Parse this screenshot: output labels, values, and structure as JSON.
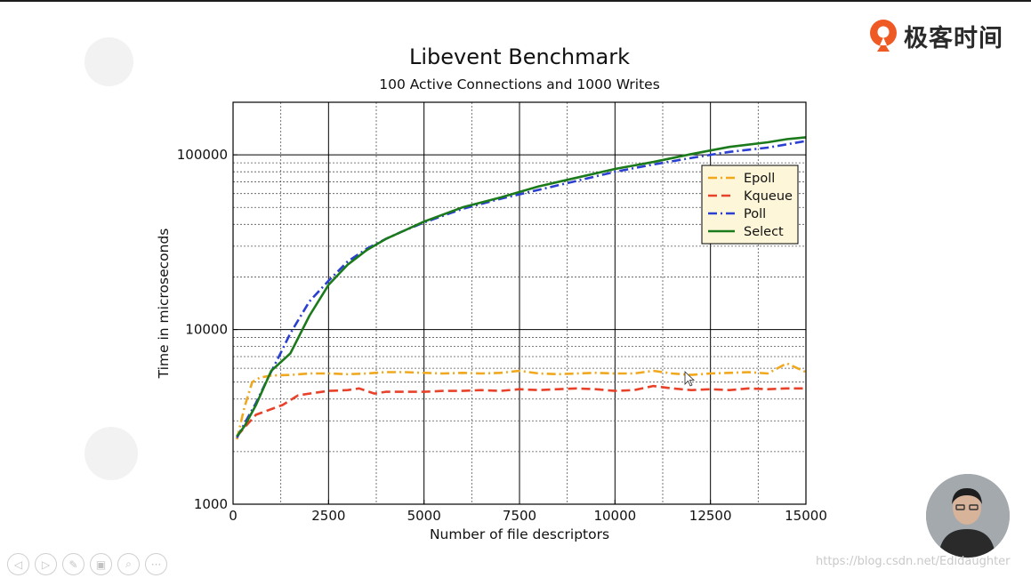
{
  "brand": {
    "name": "极客时间",
    "accent": "#ef5a24"
  },
  "watermark": "https://blog.csdn.net/Edidaughter",
  "controls": [
    {
      "name": "prev-icon",
      "glyph": "◁"
    },
    {
      "name": "next-icon",
      "glyph": "▷"
    },
    {
      "name": "pen-icon",
      "glyph": "✎"
    },
    {
      "name": "slides-icon",
      "glyph": "▣"
    },
    {
      "name": "zoom-icon",
      "glyph": "⌕"
    },
    {
      "name": "more-icon",
      "glyph": "···"
    }
  ],
  "chart_data": {
    "type": "line",
    "title": "Libevent Benchmark",
    "subtitle": "100 Active Connections and 1000 Writes",
    "xlabel": "Number of file descriptors",
    "ylabel": "Time in microseconds",
    "xlim": [
      0,
      15000
    ],
    "ylim": [
      1000,
      200000
    ],
    "yscale": "log",
    "grid": true,
    "legend_position": "upper-right",
    "x_ticks": [
      0,
      2500,
      5000,
      7500,
      10000,
      12500,
      15000
    ],
    "x_tick_labels": [
      "0",
      "2500",
      "5000",
      "7500",
      "10000",
      "12500",
      "15000"
    ],
    "y_ticks": [
      1000,
      10000,
      100000
    ],
    "y_tick_labels": [
      "1000",
      "10000",
      "100000"
    ],
    "series": [
      {
        "name": "Epoll",
        "color": "#f0a81e",
        "dash": "10,4,2,4",
        "x": [
          100,
          300,
          500,
          700,
          1000,
          1500,
          2000,
          2500,
          3000,
          3500,
          4000,
          4500,
          5000,
          5500,
          6000,
          6500,
          7000,
          7500,
          8000,
          8500,
          9000,
          9500,
          10000,
          10500,
          11000,
          11500,
          12000,
          12500,
          13000,
          13500,
          14000,
          14500,
          15000
        ],
        "y": [
          2350,
          3600,
          5000,
          5300,
          5450,
          5500,
          5600,
          5600,
          5550,
          5600,
          5700,
          5700,
          5650,
          5600,
          5650,
          5600,
          5650,
          5800,
          5600,
          5550,
          5600,
          5650,
          5600,
          5600,
          5800,
          5600,
          5500,
          5600,
          5650,
          5700,
          5600,
          6400,
          5700
        ]
      },
      {
        "name": "Kqueue",
        "color": "#e8422a",
        "dash": "10,5",
        "x": [
          100,
          300,
          600,
          1000,
          1300,
          1700,
          2000,
          2500,
          3000,
          3300,
          3700,
          4000,
          4500,
          5000,
          5500,
          6000,
          6500,
          7000,
          7500,
          8000,
          8500,
          9000,
          9500,
          10000,
          10500,
          11000,
          11500,
          12000,
          12500,
          13000,
          13500,
          14000,
          14500,
          15000
        ],
        "y": [
          2450,
          2750,
          3250,
          3500,
          3700,
          4200,
          4300,
          4450,
          4500,
          4600,
          4300,
          4400,
          4400,
          4400,
          4450,
          4450,
          4500,
          4450,
          4550,
          4500,
          4550,
          4600,
          4550,
          4450,
          4500,
          4750,
          4600,
          4500,
          4550,
          4500,
          4600,
          4550,
          4600,
          4600
        ]
      },
      {
        "name": "Poll",
        "color": "#2b3fd1",
        "dash": "10,4,2,4",
        "x": [
          100,
          300,
          600,
          900,
          1200,
          1500,
          2000,
          2500,
          3000,
          3500,
          4000,
          4500,
          5000,
          6000,
          7000,
          8000,
          9000,
          10000,
          11000,
          12000,
          12500,
          13000,
          14000,
          15000
        ],
        "y": [
          2400,
          2900,
          3800,
          5200,
          7000,
          9500,
          14500,
          19000,
          24500,
          29000,
          33000,
          37000,
          41000,
          49000,
          56000,
          63000,
          71000,
          80000,
          88000,
          96000,
          100000,
          104000,
          110000,
          120000
        ]
      },
      {
        "name": "Select",
        "color": "#1b7a1b",
        "dash": "none",
        "x": [
          100,
          300,
          600,
          1000,
          1500,
          2000,
          2500,
          3000,
          3500,
          4000,
          4500,
          5000,
          6000,
          7000,
          8000,
          9000,
          10000,
          11000,
          12000,
          12500,
          13000,
          14000,
          14500,
          15000
        ],
        "y": [
          2450,
          2800,
          3700,
          5800,
          7300,
          12000,
          18000,
          23500,
          28500,
          33000,
          37000,
          41500,
          50000,
          57000,
          66000,
          74000,
          83000,
          91000,
          101000,
          106000,
          111000,
          118000,
          123000,
          126000
        ]
      }
    ]
  }
}
